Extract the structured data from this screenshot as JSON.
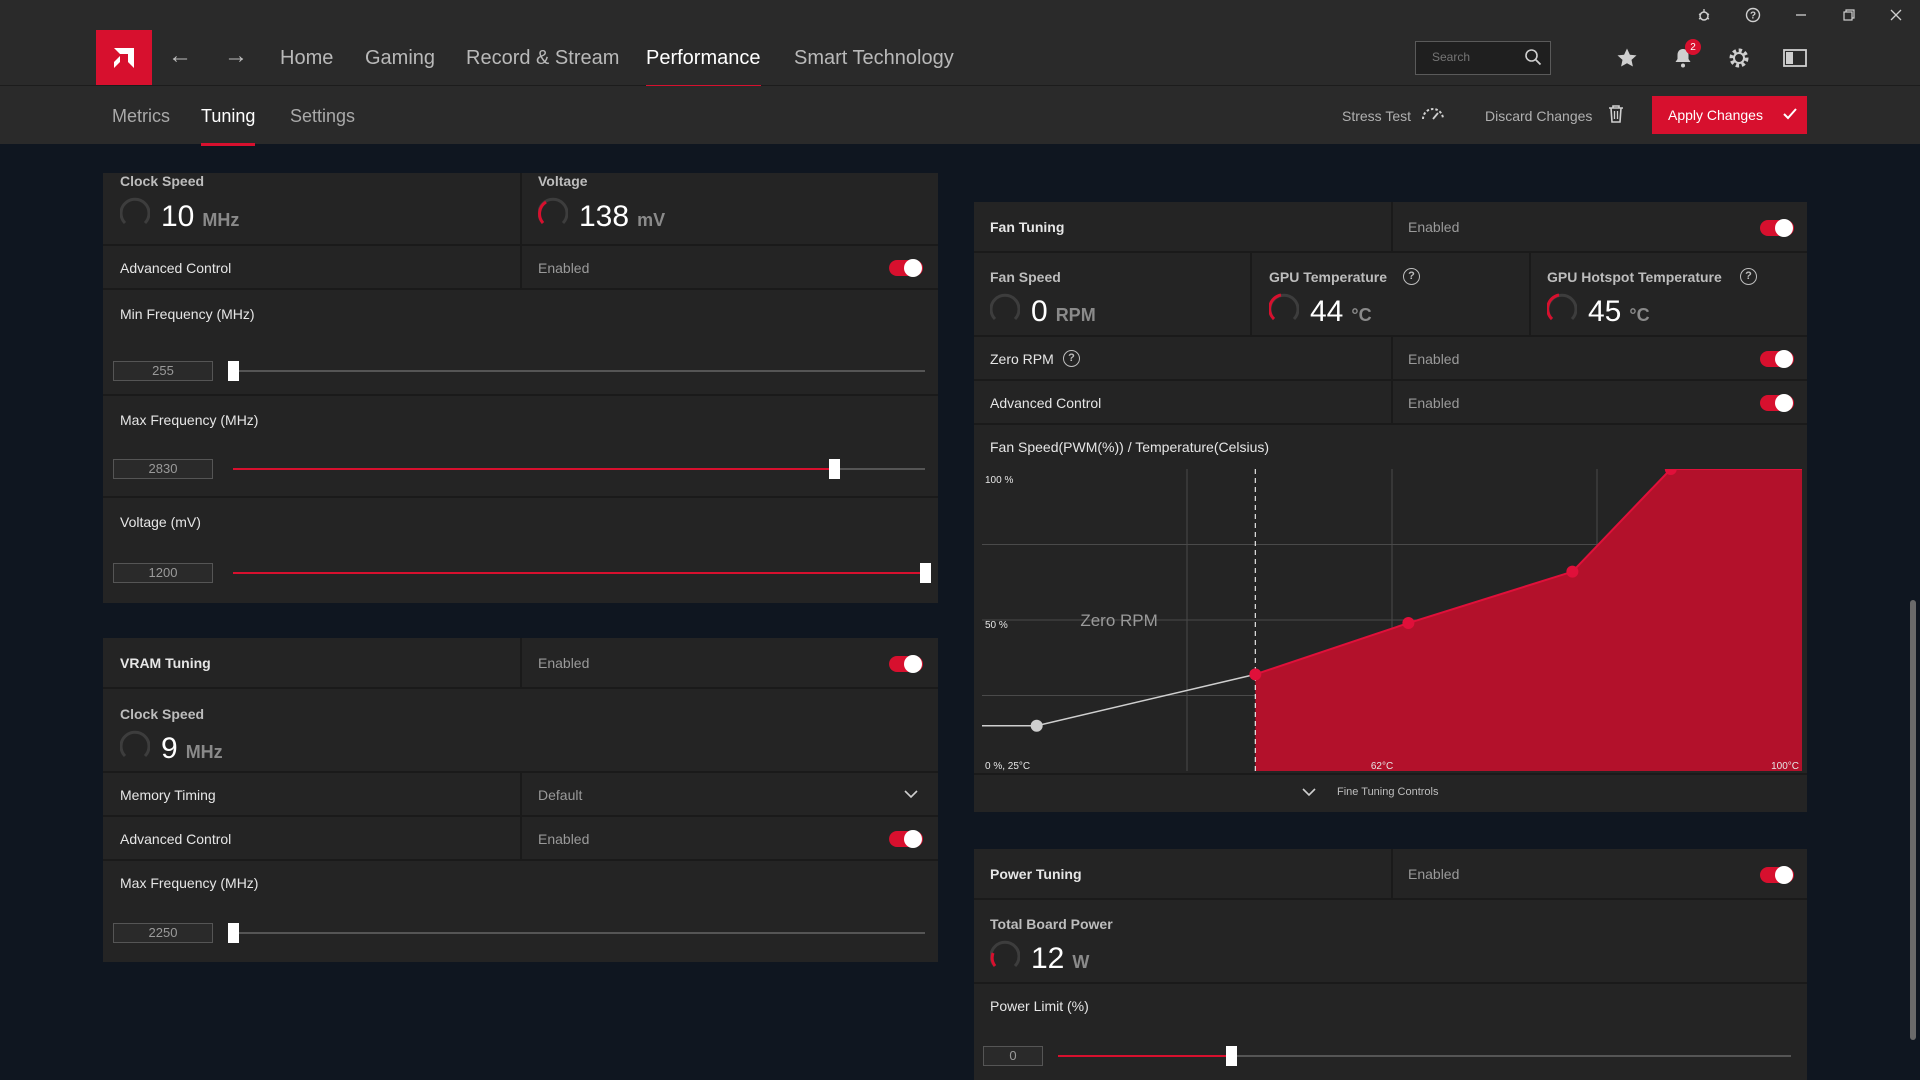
{
  "titlebar": {
    "icons": [
      "bug-icon",
      "help-icon",
      "minimize-icon",
      "restore-icon",
      "close-icon"
    ]
  },
  "nav": {
    "items": [
      "Home",
      "Gaming",
      "Record & Stream",
      "Performance",
      "Smart Technology"
    ],
    "active": "Performance",
    "search_placeholder": "Search",
    "notification_count": "2"
  },
  "subnav": {
    "items": [
      "Metrics",
      "Tuning",
      "Settings"
    ],
    "active": "Tuning",
    "stress_test": "Stress Test",
    "discard": "Discard Changes",
    "apply": "Apply Changes"
  },
  "gpu_tuning": {
    "clock_speed_label": "Clock Speed",
    "clock_speed_value": "10",
    "clock_speed_unit": "MHz",
    "voltage_label": "Voltage",
    "voltage_value": "138",
    "voltage_unit": "mV",
    "advanced_control_label": "Advanced Control",
    "advanced_control_state": "Enabled",
    "min_freq_label": "Min Frequency (MHz)",
    "min_freq_value": "255",
    "min_freq_fraction": 0.0,
    "max_freq_label": "Max Frequency (MHz)",
    "max_freq_value": "2830",
    "max_freq_fraction": 0.868,
    "voltage_mv_label": "Voltage (mV)",
    "voltage_mv_value": "1200",
    "voltage_mv_fraction": 1.0
  },
  "vram_tuning": {
    "title": "VRAM Tuning",
    "state": "Enabled",
    "clock_speed_label": "Clock Speed",
    "clock_speed_value": "9",
    "clock_speed_unit": "MHz",
    "memory_timing_label": "Memory Timing",
    "memory_timing_value": "Default",
    "advanced_control_label": "Advanced Control",
    "advanced_control_state": "Enabled",
    "max_freq_label": "Max Frequency (MHz)",
    "max_freq_value": "2250",
    "max_freq_fraction": 0.0
  },
  "fan_tuning": {
    "title": "Fan Tuning",
    "state": "Enabled",
    "fan_speed_label": "Fan Speed",
    "fan_speed_value": "0",
    "fan_speed_unit": "RPM",
    "gpu_temp_label": "GPU Temperature",
    "gpu_temp_value": "44",
    "gpu_temp_unit": "°C",
    "hotspot_label": "GPU Hotspot Temperature",
    "hotspot_value": "45",
    "hotspot_unit": "°C",
    "zero_rpm_label": "Zero RPM",
    "zero_rpm_state": "Enabled",
    "advanced_control_label": "Advanced Control",
    "advanced_control_state": "Enabled",
    "curve_title": "Fan Speed(PWM(%)) / Temperature(Celsius)",
    "fine_tuning": "Fine Tuning Controls"
  },
  "chart_data": {
    "type": "area",
    "title": "Fan Speed(PWM(%)) / Temperature(Celsius)",
    "x_unit": "°C",
    "xlim": [
      25,
      100
    ],
    "ylim": [
      0,
      100
    ],
    "x_tick_labels": [
      "0 %, 25°C",
      "62°C",
      "100°C"
    ],
    "y_tick_labels": [
      "100 %",
      "50 %"
    ],
    "zero_rpm_label": "Zero RPM",
    "zero_rpm_until": 50,
    "points": [
      {
        "x": 30,
        "y": 15
      },
      {
        "x": 50,
        "y": 32
      },
      {
        "x": 64,
        "y": 49
      },
      {
        "x": 79,
        "y": 66
      },
      {
        "x": 88,
        "y": 100
      }
    ],
    "colors": {
      "fill": "#b3112b",
      "accent": "#e0103a"
    }
  },
  "power_tuning": {
    "title": "Power Tuning",
    "state": "Enabled",
    "tbp_label": "Total Board Power",
    "tbp_value": "12",
    "tbp_unit": "W",
    "power_limit_label": "Power Limit (%)",
    "power_limit_value": "0",
    "power_limit_fraction": 0.236
  },
  "colors": {
    "accent": "#d7102e",
    "panel": "#242424",
    "background": "#0f1620"
  }
}
